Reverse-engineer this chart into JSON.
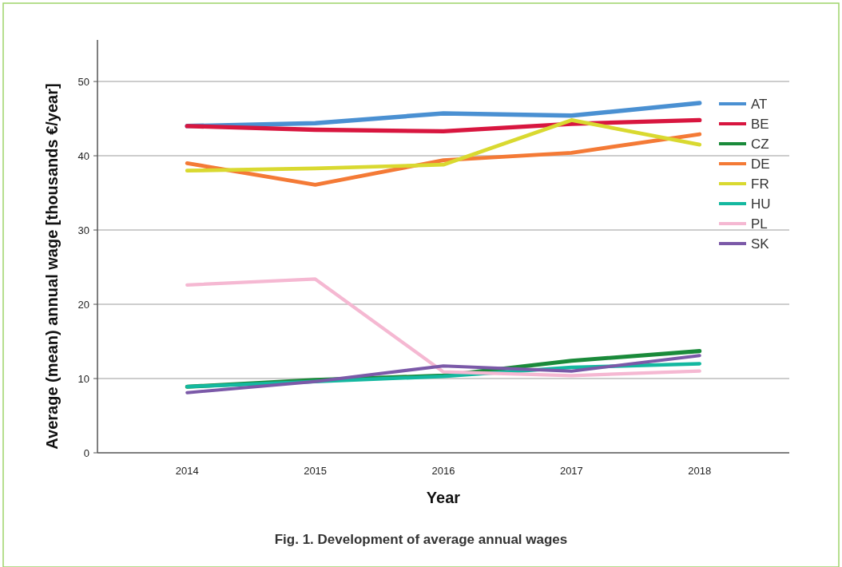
{
  "chart_data": {
    "type": "line",
    "xlabel": "Year",
    "ylabel": "Average (mean) annual wage [thousands €/year]",
    "annotations": [
      "Fig. 1. Development of average annual wages"
    ],
    "categories": [
      "2014",
      "2015",
      "2016",
      "2017",
      "2018"
    ],
    "series": [
      {
        "name": "AT",
        "color": "#4a90d2",
        "values": [
          44.0,
          44.4,
          45.7,
          45.4,
          47.1
        ]
      },
      {
        "name": "BE",
        "color": "#d8163f",
        "values": [
          44.0,
          43.5,
          43.3,
          44.3,
          44.8
        ]
      },
      {
        "name": "CZ",
        "color": "#1a8a3a",
        "values": [
          8.9,
          9.8,
          10.4,
          12.4,
          13.7
        ]
      },
      {
        "name": "DE",
        "color": "#f47a36",
        "values": [
          39.0,
          36.1,
          39.4,
          40.4,
          42.9
        ]
      },
      {
        "name": "FR",
        "color": "#d9d930",
        "values": [
          38.0,
          38.3,
          38.8,
          44.8,
          41.5
        ]
      },
      {
        "name": "HU",
        "color": "#14b8a0",
        "values": [
          8.9,
          9.6,
          10.3,
          11.5,
          12.0
        ]
      },
      {
        "name": "PL",
        "color": "#f5b8d2",
        "values": [
          22.6,
          23.4,
          10.9,
          10.4,
          11.0
        ]
      },
      {
        "name": "SK",
        "color": "#7b59a8",
        "values": [
          8.1,
          9.6,
          11.7,
          11.0,
          13.1
        ]
      }
    ],
    "ylim": [
      0,
      55.6
    ],
    "yticks": [
      0,
      10,
      20,
      30,
      40,
      50
    ],
    "grid": "y",
    "legend": "top right",
    "marker": "none",
    "line_style": "solid"
  }
}
